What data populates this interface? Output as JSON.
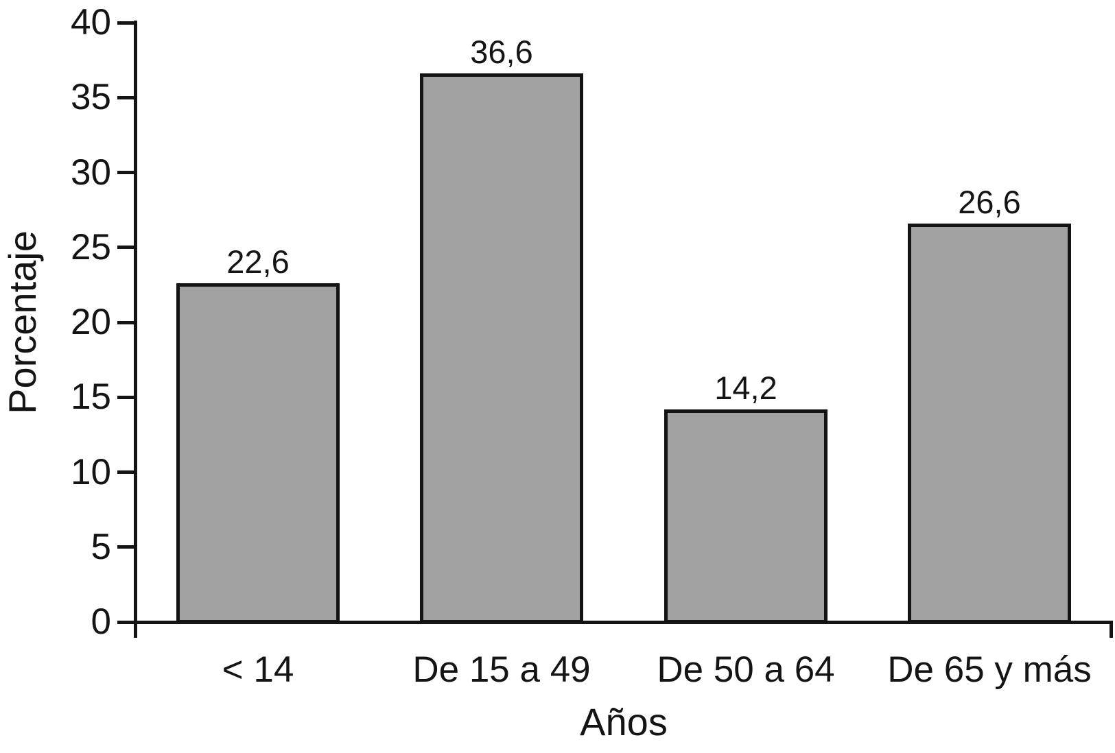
{
  "chart_data": {
    "type": "bar",
    "title": "",
    "xlabel": "Años",
    "ylabel": "Porcentaje",
    "categories": [
      "< 14",
      "De 15 a 49",
      "De 50 a 64",
      "De 65 y más"
    ],
    "values": [
      22.6,
      36.6,
      14.2,
      26.6
    ],
    "value_labels": [
      "22,6",
      "36,6",
      "14,2",
      "26,6"
    ],
    "ylim": [
      0,
      40
    ],
    "ytick_step": 5,
    "ytick_labels": [
      "0",
      "5",
      "10",
      "15",
      "20",
      "25",
      "30",
      "35",
      "40"
    ],
    "grid": false,
    "legend": "none",
    "bar_fill_color": "#a2a2a2",
    "bar_border_color": "#141414",
    "axis_color": "#141414",
    "text_color": "#141414",
    "background_color": "#ffffff"
  }
}
